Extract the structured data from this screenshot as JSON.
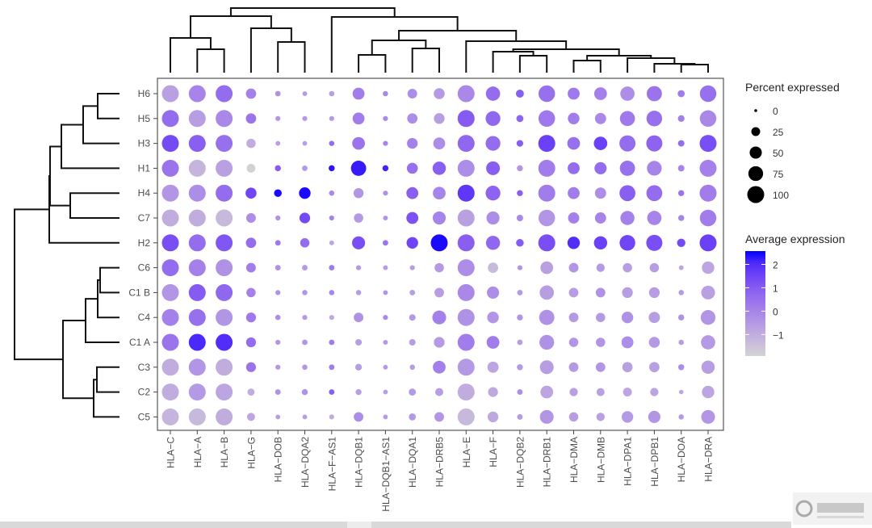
{
  "chart_data": {
    "type": "dotplot",
    "rows": [
      "H6",
      "H5",
      "H3",
      "H1",
      "H4",
      "C7",
      "H2",
      "C6",
      "C1 B",
      "C4",
      "C1 A",
      "C3",
      "C2",
      "C5"
    ],
    "columns": [
      "HLA−C",
      "HLA−A",
      "HLA−B",
      "HLA−G",
      "HLA−DOB",
      "HLA−DQA2",
      "HLA−F−AS1",
      "HLA−DQB1",
      "HLA−DQB1−AS1",
      "HLA−DQA1",
      "HLA−DRB5",
      "HLA−E",
      "HLA−F",
      "HLA−DQB2",
      "HLA−DRB1",
      "HLA−DMA",
      "HLA−DMB",
      "HLA−DPA1",
      "HLA−DPB1",
      "HLA−DOA",
      "HLA−DRA"
    ],
    "percent_expressed": [
      [
        100,
        100,
        100,
        35,
        8,
        5,
        7,
        48,
        7,
        30,
        40,
        100,
        70,
        20,
        95,
        48,
        55,
        70,
        80,
        15,
        95
      ],
      [
        100,
        100,
        100,
        35,
        6,
        6,
        6,
        48,
        6,
        35,
        38,
        100,
        75,
        15,
        95,
        45,
        42,
        78,
        85,
        13,
        95
      ],
      [
        100,
        100,
        100,
        28,
        5,
        5,
        7,
        55,
        6,
        38,
        48,
        100,
        75,
        13,
        100,
        55,
        62,
        90,
        90,
        12,
        100
      ],
      [
        100,
        100,
        100,
        24,
        10,
        8,
        10,
        80,
        10,
        40,
        60,
        100,
        65,
        10,
        100,
        48,
        50,
        80,
        75,
        12,
        100
      ],
      [
        100,
        100,
        100,
        40,
        18,
        45,
        7,
        33,
        6,
        48,
        55,
        100,
        75,
        10,
        100,
        48,
        42,
        88,
        88,
        10,
        100
      ],
      [
        100,
        100,
        100,
        30,
        6,
        38,
        6,
        28,
        5,
        48,
        58,
        100,
        58,
        12,
        95,
        42,
        42,
        68,
        70,
        10,
        95
      ],
      [
        100,
        100,
        100,
        35,
        8,
        28,
        5,
        58,
        8,
        45,
        100,
        100,
        68,
        18,
        100,
        52,
        60,
        85,
        90,
        22,
        100
      ],
      [
        100,
        100,
        100,
        30,
        8,
        8,
        8,
        6,
        5,
        6,
        28,
        100,
        35,
        6,
        55,
        30,
        22,
        28,
        28,
        5,
        52
      ],
      [
        100,
        100,
        100,
        28,
        6,
        7,
        7,
        7,
        5,
        8,
        30,
        100,
        50,
        8,
        70,
        30,
        30,
        38,
        38,
        7,
        65
      ],
      [
        100,
        100,
        100,
        32,
        7,
        6,
        6,
        30,
        6,
        12,
        65,
        100,
        45,
        10,
        80,
        30,
        28,
        45,
        42,
        10,
        75
      ],
      [
        100,
        100,
        100,
        32,
        6,
        8,
        8,
        12,
        5,
        12,
        38,
        100,
        55,
        8,
        75,
        28,
        28,
        48,
        40,
        7,
        70
      ],
      [
        100,
        100,
        100,
        32,
        6,
        7,
        8,
        13,
        5,
        7,
        55,
        100,
        42,
        10,
        65,
        30,
        30,
        35,
        35,
        10,
        60
      ],
      [
        100,
        100,
        100,
        15,
        8,
        10,
        8,
        10,
        5,
        15,
        20,
        100,
        32,
        8,
        55,
        22,
        20,
        25,
        22,
        4,
        52
      ],
      [
        100,
        100,
        100,
        20,
        5,
        5,
        6,
        30,
        5,
        15,
        30,
        100,
        38,
        8,
        65,
        28,
        22,
        45,
        50,
        7,
        65
      ]
    ],
    "average_expression": [
      [
        -0.7,
        0,
        0.6,
        0.1,
        -0.3,
        -0.5,
        -0.6,
        0.2,
        -0.1,
        -0.2,
        -0.5,
        -0.1,
        0.6,
        0.9,
        0.5,
        0.3,
        0.1,
        -0.2,
        0.4,
        0.2,
        0.5
      ],
      [
        0.6,
        -0.6,
        -0.1,
        0.4,
        -0.4,
        -0.5,
        -0.5,
        0.2,
        -0.1,
        -0.2,
        -0.6,
        1.0,
        0.7,
        0.8,
        0.3,
        0.2,
        -0.1,
        0.3,
        0.5,
        0.1,
        -0.1
      ],
      [
        1.4,
        0.9,
        0.5,
        -1.0,
        -0.6,
        -0.6,
        0.6,
        0.4,
        0,
        0.1,
        -0.2,
        0.7,
        0.6,
        0.9,
        1.6,
        0.5,
        1.6,
        0.6,
        0.8,
        0.6,
        1.3
      ],
      [
        0.4,
        -1.2,
        -0.7,
        -1.9,
        1.0,
        -0.5,
        2.4,
        2.3,
        2.2,
        0.5,
        0.9,
        -0.2,
        0.9,
        -0.4,
        0.2,
        0.6,
        0.6,
        0.5,
        0.0,
        0.0,
        0.1
      ],
      [
        -0.4,
        -0.2,
        0.6,
        1.5,
        2.5,
        2.5,
        -0.1,
        -0.4,
        -0.3,
        0.9,
        0.0,
        1.8,
        0.8,
        0.9,
        0.2,
        0.2,
        -0.2,
        0.9,
        0.6,
        0.4,
        0.2
      ],
      [
        -1.0,
        -1.0,
        -1.3,
        -0.2,
        -0.3,
        1.4,
        0.0,
        -0.5,
        -0.3,
        1.2,
        0.0,
        -0.7,
        -0.2,
        -0.1,
        -0.4,
        0.1,
        0.0,
        0.1,
        0.0,
        0.0,
        0.2
      ],
      [
        1.3,
        0.6,
        1.1,
        0.6,
        0.3,
        0.6,
        -0.8,
        1.3,
        0.4,
        1.5,
        2.5,
        0.9,
        0.7,
        1.0,
        1.3,
        2.0,
        1.6,
        1.5,
        1.3,
        1.4,
        1.6
      ],
      [
        0.6,
        0.1,
        -0.3,
        0.2,
        -0.3,
        -0.5,
        0.2,
        -0.5,
        -0.5,
        -0.6,
        -0.5,
        -0.2,
        -1.3,
        -0.4,
        -0.7,
        -0.4,
        -0.5,
        -0.6,
        -0.6,
        -0.8,
        -0.8
      ],
      [
        -0.4,
        1.0,
        0.7,
        0.1,
        -0.3,
        -0.4,
        0.0,
        -0.6,
        -0.4,
        -0.6,
        -0.6,
        -0.1,
        -0.2,
        -0.5,
        -0.6,
        -0.6,
        -0.3,
        -0.6,
        -0.6,
        -0.5,
        -0.7
      ],
      [
        0.1,
        0.5,
        -0.4,
        0.3,
        -0.2,
        -0.5,
        -0.9,
        -0.3,
        -0.1,
        -0.5,
        0.1,
        -0.3,
        -0.4,
        -0.4,
        -0.3,
        -0.5,
        -0.5,
        -0.3,
        -0.6,
        -0.3,
        -0.4
      ],
      [
        0.4,
        2.1,
        2.0,
        0.6,
        -0.4,
        -0.4,
        0.2,
        -0.6,
        -0.4,
        -0.6,
        -0.5,
        0.2,
        0.2,
        -0.6,
        -0.3,
        -0.4,
        -0.4,
        -0.2,
        -0.5,
        -0.6,
        -0.5
      ],
      [
        -1.0,
        -0.4,
        -1.0,
        0.4,
        -0.4,
        -0.4,
        0.2,
        -0.6,
        -0.5,
        -0.6,
        0.1,
        -0.5,
        -0.8,
        -0.5,
        -0.6,
        -0.5,
        -0.4,
        -0.7,
        -0.7,
        -0.2,
        -0.6
      ],
      [
        -1.0,
        -0.5,
        -0.8,
        -1.0,
        -0.3,
        -0.3,
        0.9,
        -0.7,
        -0.6,
        -0.5,
        -0.6,
        -1.0,
        -0.9,
        -0.2,
        -0.8,
        -0.7,
        -0.7,
        -0.8,
        -0.8,
        -0.8,
        -0.8
      ],
      [
        -1.2,
        -1.3,
        -1.0,
        -0.8,
        -0.6,
        -0.6,
        -1.0,
        -0.2,
        -0.5,
        -0.5,
        -0.4,
        -1.3,
        -0.9,
        -0.5,
        -0.4,
        -0.6,
        -0.7,
        -0.5,
        -0.4,
        -0.5,
        -0.4
      ]
    ],
    "size_legend": {
      "title": "Percent expressed",
      "values": [
        0,
        25,
        50,
        75,
        100
      ],
      "labels": [
        "0",
        "25",
        "50",
        "75",
        "100"
      ]
    },
    "color_legend": {
      "title": "Average expression",
      "ticks": [
        2,
        1,
        0,
        -1
      ],
      "labels": [
        "2",
        "1",
        "0",
        "−1"
      ],
      "range": [
        -1.92,
        2.57
      ],
      "low_color": "#D3D3D3",
      "high_color": "#0000FF"
    },
    "grid": false,
    "legend_position": "right",
    "row_dendrogram": true,
    "column_dendrogram": true
  },
  "watermark": "创新互联"
}
